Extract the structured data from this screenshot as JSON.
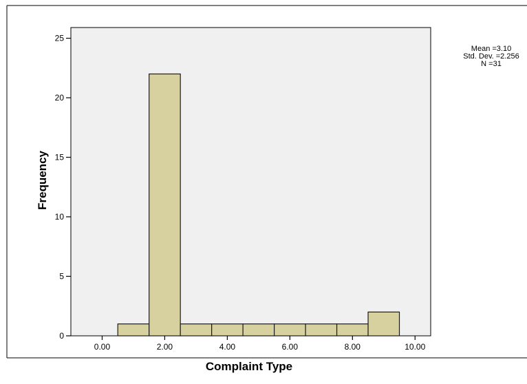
{
  "chart_data": {
    "type": "bar",
    "title": "",
    "xlabel": "Complaint Type",
    "ylabel": "Frequency",
    "xlim": [
      -1.0,
      10.5
    ],
    "ylim": [
      0,
      25.9
    ],
    "x_ticks": [
      "0.00",
      "2.00",
      "4.00",
      "6.00",
      "8.00",
      "10.00"
    ],
    "x_tick_values": [
      0,
      2,
      4,
      6,
      8,
      10
    ],
    "y_ticks": [
      "0",
      "5",
      "10",
      "15",
      "20",
      "25"
    ],
    "y_tick_values": [
      0,
      5,
      10,
      15,
      20,
      25
    ],
    "bins": [
      {
        "x0": 0.5,
        "x1": 1.5,
        "count": 1
      },
      {
        "x0": 1.5,
        "x1": 2.5,
        "count": 22
      },
      {
        "x0": 2.5,
        "x1": 3.5,
        "count": 1
      },
      {
        "x0": 3.5,
        "x1": 4.5,
        "count": 1
      },
      {
        "x0": 4.5,
        "x1": 5.5,
        "count": 1
      },
      {
        "x0": 5.5,
        "x1": 6.5,
        "count": 1
      },
      {
        "x0": 6.5,
        "x1": 7.5,
        "count": 1
      },
      {
        "x0": 7.5,
        "x1": 8.5,
        "count": 1
      },
      {
        "x0": 8.5,
        "x1": 9.5,
        "count": 2
      }
    ],
    "stats": {
      "mean": "Mean =3.10",
      "std_dev": "Std. Dev. =2.256",
      "n": "N =31"
    },
    "grid": false,
    "colors": {
      "bar_fill": "#d6d19f",
      "bar_stroke": "#1a1a1a",
      "plot_background": "#f0f0f0",
      "axis": "#000000",
      "frame": "#000000"
    }
  }
}
